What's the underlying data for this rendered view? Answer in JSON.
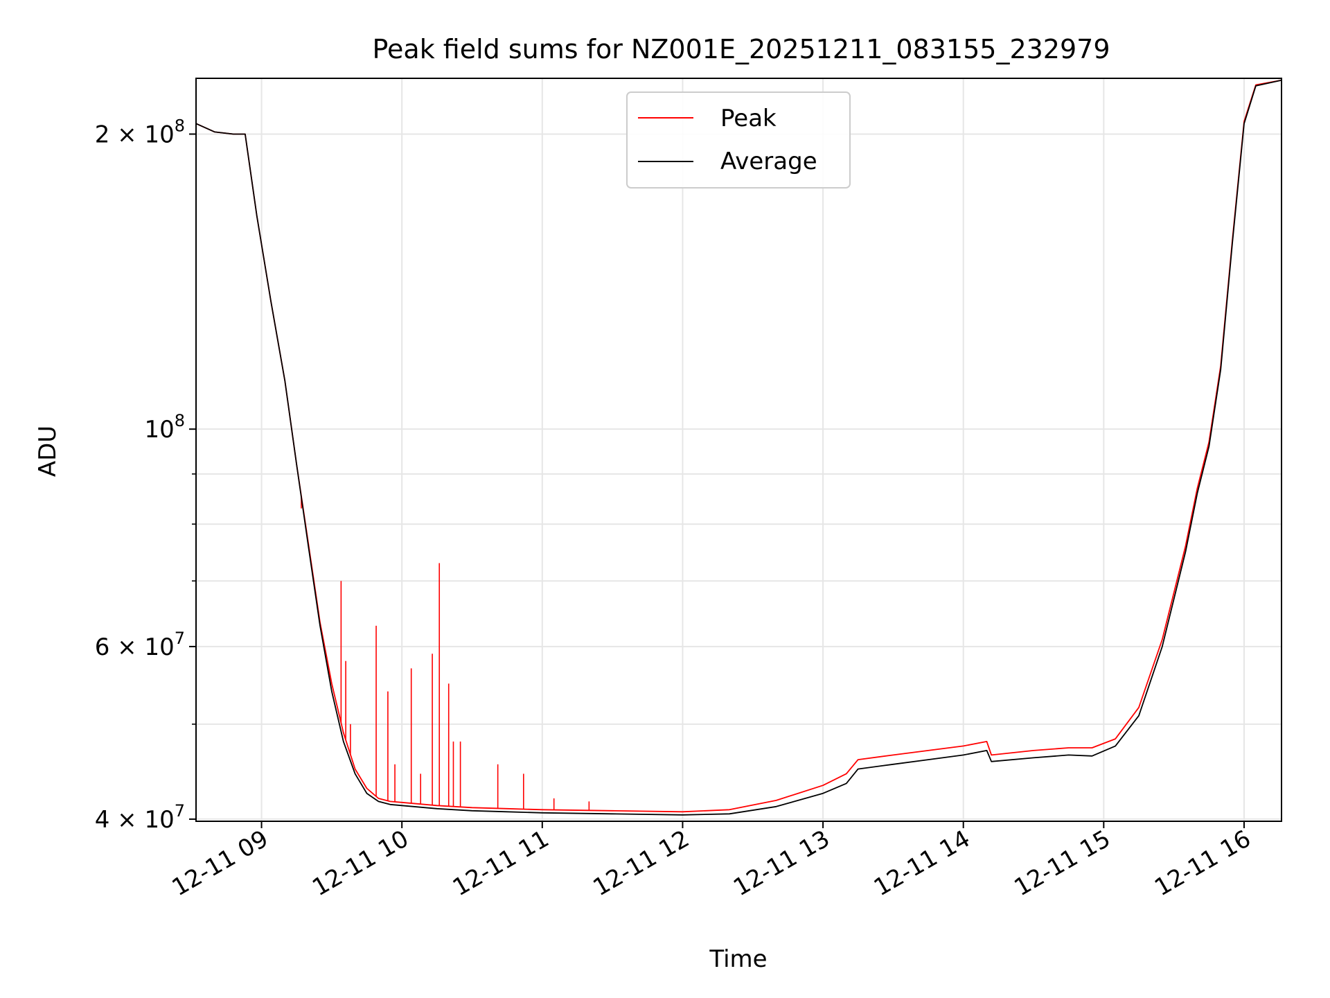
{
  "chart_data": {
    "type": "line",
    "title": "Peak field sums for NZ001E_20251211_083155_232979",
    "xlabel": "Time",
    "ylabel": "ADU",
    "yscale": "log",
    "grid": true,
    "legend_position": "top-center",
    "xlim": [
      "2025-12-11 08:32",
      "2025-12-11 16:16"
    ],
    "ylim": [
      39800000,
      228000000
    ],
    "x_ticks": [
      "12-11 09",
      "12-11 10",
      "12-11 11",
      "12-11 12",
      "12-11 13",
      "12-11 14",
      "12-11 15",
      "12-11 16"
    ],
    "x_tick_values": [
      "2025-12-11 09:00",
      "2025-12-11 10:00",
      "2025-12-11 11:00",
      "2025-12-11 12:00",
      "2025-12-11 13:00",
      "2025-12-11 14:00",
      "2025-12-11 15:00",
      "2025-12-11 16:00"
    ],
    "y_ticks": [
      {
        "base": "2",
        "exp": "8",
        "value": 200000000
      },
      {
        "base": "",
        "exp": "8",
        "value": 100000000
      },
      {
        "base": "6",
        "exp": "7",
        "value": 60000000
      },
      {
        "base": "4",
        "exp": "7",
        "value": 40000000
      }
    ],
    "y_minor_ticks": [
      50000000,
      70000000,
      80000000,
      90000000
    ],
    "series": [
      {
        "name": "Average",
        "color": "#000000",
        "x": [
          "2025-12-11 08:32",
          "2025-12-11 08:40",
          "2025-12-11 08:48",
          "2025-12-11 08:53",
          "2025-12-11 08:58",
          "2025-12-11 09:04",
          "2025-12-11 09:10",
          "2025-12-11 09:15",
          "2025-12-11 09:20",
          "2025-12-11 09:25",
          "2025-12-11 09:30",
          "2025-12-11 09:35",
          "2025-12-11 09:40",
          "2025-12-11 09:45",
          "2025-12-11 09:50",
          "2025-12-11 09:55",
          "2025-12-11 10:00",
          "2025-12-11 10:15",
          "2025-12-11 10:30",
          "2025-12-11 10:45",
          "2025-12-11 11:00",
          "2025-12-11 11:30",
          "2025-12-11 12:00",
          "2025-12-11 12:20",
          "2025-12-11 12:40",
          "2025-12-11 13:00",
          "2025-12-11 13:10",
          "2025-12-11 13:15",
          "2025-12-11 13:30",
          "2025-12-11 13:45",
          "2025-12-11 14:00",
          "2025-12-11 14:10",
          "2025-12-11 14:12",
          "2025-12-11 14:30",
          "2025-12-11 14:45",
          "2025-12-11 14:55",
          "2025-12-11 15:05",
          "2025-12-11 15:15",
          "2025-12-11 15:25",
          "2025-12-11 15:35",
          "2025-12-11 15:40",
          "2025-12-11 15:45",
          "2025-12-11 15:50",
          "2025-12-11 15:55",
          "2025-12-11 16:00",
          "2025-12-11 16:05",
          "2025-12-11 16:16"
        ],
        "values": [
          205000000,
          201000000,
          200000000,
          200000000,
          165000000,
          135000000,
          112000000,
          92000000,
          76000000,
          63000000,
          54000000,
          48000000,
          44500000,
          42500000,
          41700000,
          41400000,
          41300000,
          41000000,
          40800000,
          40700000,
          40600000,
          40500000,
          40400000,
          40500000,
          41200000,
          42500000,
          43500000,
          45000000,
          45500000,
          46000000,
          46500000,
          47000000,
          45800000,
          46200000,
          46500000,
          46400000,
          47500000,
          51000000,
          60000000,
          75000000,
          86000000,
          96000000,
          115000000,
          155000000,
          205000000,
          224000000,
          227000000
        ]
      },
      {
        "name": "Peak",
        "color": "#ff0000",
        "x": [
          "2025-12-11 08:32",
          "2025-12-11 08:40",
          "2025-12-11 08:48",
          "2025-12-11 08:53",
          "2025-12-11 08:58",
          "2025-12-11 09:04",
          "2025-12-11 09:10",
          "2025-12-11 09:15",
          "2025-12-11 09:20",
          "2025-12-11 09:25",
          "2025-12-11 09:30",
          "2025-12-11 09:35",
          "2025-12-11 09:40",
          "2025-12-11 09:45",
          "2025-12-11 09:50",
          "2025-12-11 09:55",
          "2025-12-11 10:00",
          "2025-12-11 10:15",
          "2025-12-11 10:30",
          "2025-12-11 10:45",
          "2025-12-11 11:00",
          "2025-12-11 11:30",
          "2025-12-11 12:00",
          "2025-12-11 12:20",
          "2025-12-11 12:40",
          "2025-12-11 13:00",
          "2025-12-11 13:10",
          "2025-12-11 13:15",
          "2025-12-11 13:30",
          "2025-12-11 13:45",
          "2025-12-11 14:00",
          "2025-12-11 14:10",
          "2025-12-11 14:12",
          "2025-12-11 14:30",
          "2025-12-11 14:45",
          "2025-12-11 14:55",
          "2025-12-11 15:05",
          "2025-12-11 15:15",
          "2025-12-11 15:25",
          "2025-12-11 15:35",
          "2025-12-11 15:40",
          "2025-12-11 15:45",
          "2025-12-11 15:50",
          "2025-12-11 15:55",
          "2025-12-11 16:00",
          "2025-12-11 16:05",
          "2025-12-11 16:16"
        ],
        "values": [
          205000000,
          201000000,
          200000000,
          200000000,
          165000000,
          135000000,
          112000000,
          92000000,
          76500000,
          63500000,
          55000000,
          49000000,
          45000000,
          43000000,
          42000000,
          41700000,
          41600000,
          41300000,
          41100000,
          41000000,
          40900000,
          40800000,
          40700000,
          40900000,
          41800000,
          43300000,
          44500000,
          46000000,
          46500000,
          47000000,
          47500000,
          48000000,
          46500000,
          47000000,
          47300000,
          47300000,
          48300000,
          52000000,
          61000000,
          76000000,
          87000000,
          97000000,
          116000000,
          156000000,
          206000000,
          224500000,
          227000000
        ],
        "spikes": [
          {
            "x": "2025-12-11 09:17",
            "value": 83000000
          },
          {
            "x": "2025-12-11 09:34",
            "value": 70000000
          },
          {
            "x": "2025-12-11 09:36",
            "value": 58000000
          },
          {
            "x": "2025-12-11 09:38",
            "value": 50000000
          },
          {
            "x": "2025-12-11 09:49",
            "value": 63000000
          },
          {
            "x": "2025-12-11 09:54",
            "value": 54000000
          },
          {
            "x": "2025-12-11 09:57",
            "value": 45500000
          },
          {
            "x": "2025-12-11 10:04",
            "value": 57000000
          },
          {
            "x": "2025-12-11 10:08",
            "value": 44500000
          },
          {
            "x": "2025-12-11 10:13",
            "value": 59000000
          },
          {
            "x": "2025-12-11 10:16",
            "value": 73000000
          },
          {
            "x": "2025-12-11 10:20",
            "value": 55000000
          },
          {
            "x": "2025-12-11 10:22",
            "value": 48000000
          },
          {
            "x": "2025-12-11 10:25",
            "value": 48000000
          },
          {
            "x": "2025-12-11 10:41",
            "value": 45500000
          },
          {
            "x": "2025-12-11 10:52",
            "value": 44500000
          },
          {
            "x": "2025-12-11 11:05",
            "value": 42000000
          },
          {
            "x": "2025-12-11 11:20",
            "value": 41700000
          }
        ]
      }
    ]
  }
}
